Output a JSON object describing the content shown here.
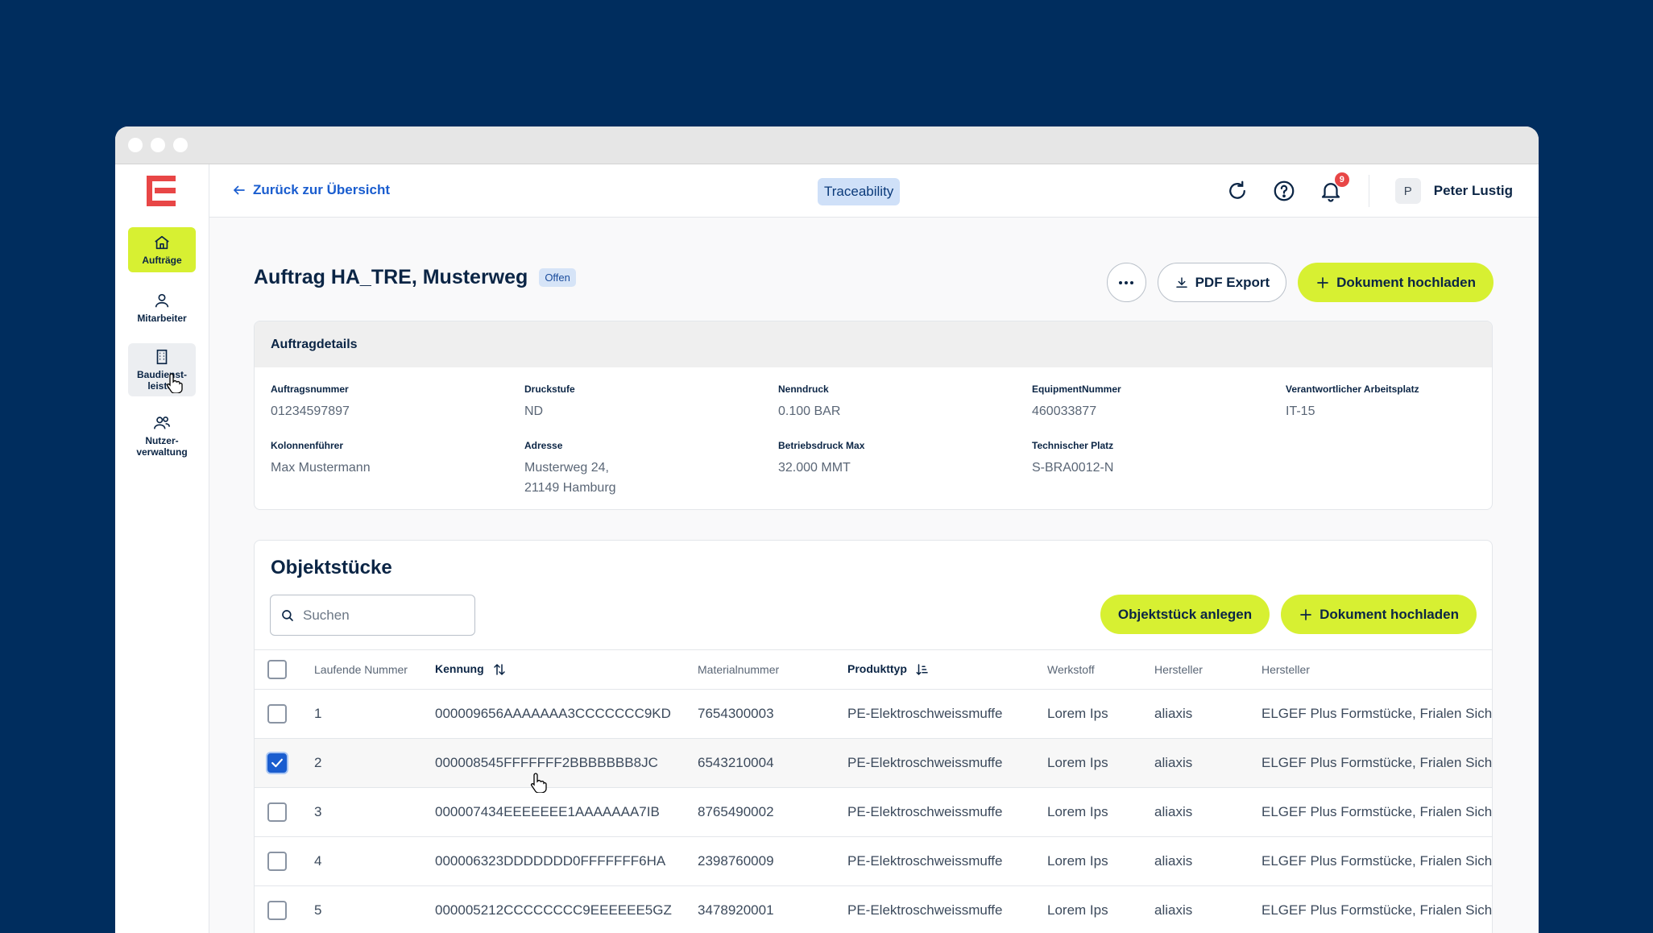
{
  "header": {
    "back_label": "Zurück zur Übersicht",
    "product_badge": "Traceability",
    "notification_count": "9",
    "user_initial": "P",
    "user_name": "Peter Lustig"
  },
  "sidebar": {
    "items": [
      {
        "label": "Aufträge",
        "icon": "home-icon"
      },
      {
        "label": "Mitarbeiter",
        "icon": "user-icon"
      },
      {
        "label": "Baudienst-\nleister",
        "icon": "building-icon"
      },
      {
        "label": "Nutzer-\nverwaltung",
        "icon": "users-icon"
      }
    ]
  },
  "page": {
    "title": "Auftrag HA_TRE, Musterweg",
    "status": "Offen",
    "pdf_export_label": "PDF Export",
    "upload_label": "Dokument hochladen"
  },
  "details": {
    "heading": "Auftragdetails",
    "fields": [
      {
        "label": "Auftragsnummer",
        "value": "01234597897"
      },
      {
        "label": "Druckstufe",
        "value": "ND"
      },
      {
        "label": "Nenndruck",
        "value": "0.100 BAR"
      },
      {
        "label": "EquipmentNummer",
        "value": "460033877"
      },
      {
        "label": "Verantwortlicher Arbeitsplatz",
        "value": "IT-15"
      },
      {
        "label": "Kolonnenführer",
        "value": "Max Mustermann"
      },
      {
        "label": "Adresse",
        "value": "Musterweg 24,\n21149 Hamburg"
      },
      {
        "label": "Betriebsdruck Max",
        "value": "32.000 MMT"
      },
      {
        "label": "Technischer Platz",
        "value": "S-BRA0012-N"
      }
    ]
  },
  "objects": {
    "heading": "Objektstücke",
    "search_placeholder": "Suchen",
    "create_label": "Objektstück anlegen",
    "upload_label": "Dokument hochladen",
    "columns": [
      "Laufende Nummer",
      "Kennung",
      "Materialnummer",
      "Produkttyp",
      "Werkstoff",
      "Hersteller",
      "Hersteller"
    ],
    "rows": [
      {
        "nr": "1",
        "kennung": "000009656AAAAAAA3CCCCCCC9KD",
        "material": "7654300003",
        "typ": "PE-Elektroschweissmuffe",
        "werkstoff": "Lorem Ips",
        "hersteller": "aliaxis",
        "hersteller2": "ELGEF Plus Formstücke, Frialen Sicherheitsformteile",
        "checked": false
      },
      {
        "nr": "2",
        "kennung": "000008545FFFFFFF2BBBBBBB8JC",
        "material": "6543210004",
        "typ": "PE-Elektroschweissmuffe",
        "werkstoff": "Lorem Ips",
        "hersteller": "aliaxis",
        "hersteller2": "ELGEF Plus Formstücke, Frialen Sicherheitsformteile",
        "checked": true
      },
      {
        "nr": "3",
        "kennung": "000007434EEEEEEE1AAAAAAA7IB",
        "material": "8765490002",
        "typ": "PE-Elektroschweissmuffe",
        "werkstoff": "Lorem Ips",
        "hersteller": "aliaxis",
        "hersteller2": "ELGEF Plus Formstücke, Frialen Sicherheitsformteile",
        "checked": false
      },
      {
        "nr": "4",
        "kennung": "000006323DDDDDDD0FFFFFFF6HA",
        "material": "2398760009",
        "typ": "PE-Elektroschweissmuffe",
        "werkstoff": "Lorem Ips",
        "hersteller": "aliaxis",
        "hersteller2": "ELGEF Plus Formstücke, Frialen Sicherheitsformteile",
        "checked": false
      },
      {
        "nr": "5",
        "kennung": "000005212CCCCCCCC9EEEEEE5GZ",
        "material": "3478920001",
        "typ": "PE-Elektroschweissmuffe",
        "werkstoff": "Lorem Ips",
        "hersteller": "aliaxis",
        "hersteller2": "ELGEF Plus Formstücke, Frialen Sicherheitsformteile",
        "checked": false
      }
    ]
  },
  "colors": {
    "background": "#002d5e",
    "accent_lime": "#d7f032",
    "link_blue": "#1a5dcf",
    "logo_red": "#e84646"
  }
}
